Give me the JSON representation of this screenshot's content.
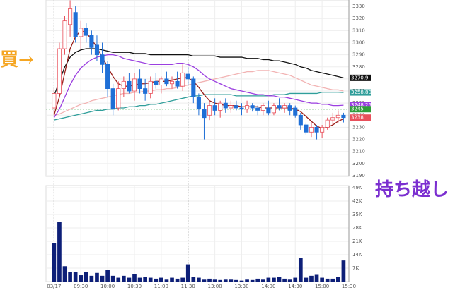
{
  "chart_data": {
    "type": "candlestick",
    "xlim": [
      -1.5,
      55
    ],
    "xticks": [
      {
        "value": 0,
        "label": "03/17"
      },
      {
        "value": 5,
        "label": "09:30"
      },
      {
        "value": 10,
        "label": "10:00"
      },
      {
        "value": 15,
        "label": "10:30"
      },
      {
        "value": 20,
        "label": "11:00"
      },
      {
        "value": 25,
        "label": "11:30"
      },
      {
        "value": 30,
        "label": "13:00"
      },
      {
        "value": 35,
        "label": "13:30"
      },
      {
        "value": 40,
        "label": "14:00"
      },
      {
        "value": 45,
        "label": "14:30"
      },
      {
        "value": 50,
        "label": "15:00"
      },
      {
        "value": 55,
        "label": "15:30"
      }
    ],
    "ylim": [
      3189.4,
      3335.3
    ],
    "yticks": [
      3190,
      3200,
      3210,
      3220,
      3230,
      3240,
      3250,
      3260,
      3270,
      3280,
      3290,
      3300,
      3310,
      3320,
      3330
    ],
    "grid": true,
    "up_color": "#e8505b",
    "down_color": "#1f6fd6",
    "open": [
      3246,
      3258,
      3295,
      3315,
      3325,
      3305,
      3312,
      3306,
      3298,
      3290,
      3282,
      3262,
      3246,
      3262,
      3268,
      3260,
      3270,
      3262,
      3258,
      3268,
      3265,
      3270,
      3266,
      3268,
      3264,
      3274,
      3270,
      3255,
      3245,
      3240,
      3248,
      3244,
      3250,
      3246,
      3248,
      3246,
      3245,
      3248,
      3246,
      3244,
      3246,
      3242,
      3248,
      3246,
      3248,
      3246,
      3240,
      3232,
      3226,
      3230,
      3226,
      3230,
      3236,
      3238,
      3240
    ],
    "high": [
      3262,
      3300,
      3322,
      3335,
      3330,
      3318,
      3316,
      3310,
      3306,
      3300,
      3285,
      3266,
      3268,
      3272,
      3275,
      3275,
      3278,
      3270,
      3272,
      3275,
      3272,
      3276,
      3272,
      3276,
      3282,
      3280,
      3272,
      3258,
      3250,
      3252,
      3254,
      3252,
      3254,
      3252,
      3252,
      3250,
      3252,
      3250,
      3248,
      3250,
      3252,
      3250,
      3254,
      3250,
      3250,
      3248,
      3242,
      3234,
      3234,
      3232,
      3232,
      3238,
      3242,
      3244,
      3242
    ],
    "low": [
      3240,
      3255,
      3290,
      3305,
      3300,
      3295,
      3300,
      3290,
      3285,
      3275,
      3255,
      3240,
      3244,
      3255,
      3258,
      3252,
      3258,
      3252,
      3254,
      3262,
      3258,
      3264,
      3262,
      3262,
      3260,
      3265,
      3250,
      3240,
      3220,
      3236,
      3240,
      3238,
      3242,
      3242,
      3244,
      3240,
      3242,
      3243,
      3240,
      3240,
      3240,
      3240,
      3244,
      3242,
      3240,
      3238,
      3228,
      3224,
      3222,
      3220,
      3221,
      3228,
      3232,
      3234,
      3234
    ],
    "close": [
      3258,
      3295,
      3318,
      3328,
      3305,
      3312,
      3306,
      3296,
      3290,
      3282,
      3262,
      3245,
      3262,
      3268,
      3260,
      3270,
      3262,
      3258,
      3268,
      3265,
      3270,
      3266,
      3268,
      3264,
      3275,
      3270,
      3255,
      3245,
      3238,
      3248,
      3244,
      3250,
      3246,
      3248,
      3246,
      3245,
      3248,
      3246,
      3244,
      3248,
      3242,
      3248,
      3246,
      3248,
      3244,
      3240,
      3232,
      3226,
      3230,
      3226,
      3230,
      3236,
      3238,
      3240,
      3238
    ],
    "lines": [
      {
        "color": "#111111",
        "end_label": "3270.9",
        "values": [
          3256,
          3268,
          3280,
          3288,
          3292,
          3294,
          3295,
          3295,
          3295,
          3294,
          3293,
          3292,
          3292,
          3292,
          3292,
          3291,
          3291,
          3291,
          3290,
          3290,
          3290,
          3290,
          3290,
          3290,
          3290,
          3290,
          3289,
          3289,
          3289,
          3289,
          3289,
          3288,
          3288,
          3288,
          3288,
          3288,
          3287,
          3287,
          3287,
          3286,
          3286,
          3285,
          3285,
          3284,
          3283,
          3282,
          3280,
          3279,
          3277,
          3276,
          3275,
          3274,
          3273,
          3272,
          3270.9
        ]
      },
      {
        "color": "#f2b3b3",
        "values": [
          3240,
          3241,
          3243,
          3245,
          3247,
          3249,
          3250,
          3252,
          3253,
          3254,
          3255,
          3256,
          3257,
          3258,
          3258,
          3259,
          3259,
          3260,
          3260,
          3261,
          3261,
          3262,
          3262,
          3263,
          3264,
          3265,
          3266,
          3267,
          3268,
          3269,
          3270,
          3271,
          3272,
          3273,
          3274,
          3275,
          3276,
          3276,
          3277,
          3277,
          3277,
          3276,
          3275,
          3274,
          3273,
          3271,
          3269,
          3267,
          3265,
          3264,
          3263,
          3262,
          3261,
          3261,
          3260
        ]
      },
      {
        "color": "#2f9e9a",
        "end_label": "3258.80",
        "values": [
          3236,
          3237,
          3238,
          3239,
          3240,
          3241,
          3242,
          3243,
          3244,
          3244,
          3245,
          3245,
          3246,
          3246,
          3247,
          3247,
          3248,
          3248,
          3249,
          3249,
          3250,
          3251,
          3252,
          3253,
          3254,
          3255,
          3256,
          3256,
          3257,
          3257,
          3257,
          3257,
          3257,
          3257,
          3256,
          3256,
          3256,
          3256,
          3256,
          3256,
          3256,
          3257,
          3257,
          3257,
          3258,
          3258,
          3258,
          3258,
          3258,
          3258,
          3259,
          3259,
          3259,
          3259,
          3258.8
        ]
      },
      {
        "color": "#9b3fe0",
        "end_label": "3248.25",
        "values": [
          3238,
          3245,
          3255,
          3265,
          3273,
          3279,
          3283,
          3286,
          3288,
          3289,
          3290,
          3290,
          3289,
          3287,
          3286,
          3285,
          3284,
          3283,
          3282,
          3282,
          3282,
          3282,
          3282,
          3283,
          3283,
          3282,
          3280,
          3277,
          3273,
          3270,
          3268,
          3266,
          3264,
          3262,
          3261,
          3260,
          3259,
          3258,
          3257,
          3257,
          3256,
          3256,
          3255,
          3255,
          3254,
          3253,
          3252,
          3251,
          3250,
          3250,
          3249,
          3249,
          3248,
          3248,
          3248.25
        ]
      },
      {
        "color": "#9a1f1a",
        "values": [
          3240,
          3255,
          3275,
          3295,
          3305,
          3310,
          3308,
          3303,
          3296,
          3288,
          3280,
          3272,
          3266,
          3264,
          3264,
          3265,
          3266,
          3266,
          3267,
          3268,
          3268,
          3268,
          3269,
          3270,
          3271,
          3271,
          3268,
          3263,
          3257,
          3252,
          3250,
          3249,
          3248,
          3248,
          3248,
          3247,
          3247,
          3247,
          3247,
          3246,
          3246,
          3246,
          3246,
          3246,
          3246,
          3245,
          3243,
          3239,
          3235,
          3231,
          3229,
          3230,
          3232,
          3235,
          3237
        ]
      }
    ],
    "ref_line": {
      "value": 3245,
      "color": "#2e9d3a"
    },
    "volume": {
      "color": "#0d1f78",
      "ylim": [
        0,
        50100
      ],
      "yticks": [
        {
          "value": 7000,
          "label": "7K"
        },
        {
          "value": 14000,
          "label": "14K"
        },
        {
          "value": 21000,
          "label": "21K"
        },
        {
          "value": 28000,
          "label": "28K"
        },
        {
          "value": 35000,
          "label": "35K"
        },
        {
          "value": 42000,
          "label": "42K"
        },
        {
          "value": 49000,
          "label": "49K"
        }
      ],
      "values": [
        20000,
        31000,
        8000,
        5000,
        5000,
        3300,
        5000,
        3000,
        4500,
        3000,
        6000,
        3000,
        2000,
        3000,
        2000,
        4000,
        2000,
        2500,
        2000,
        1500,
        2000,
        1000,
        2000,
        1500,
        2000,
        9000,
        2500,
        2000,
        1000,
        1500,
        1000,
        800,
        1000,
        1000,
        800,
        500,
        1000,
        800,
        1500,
        1000,
        2000,
        2000,
        2500,
        1500,
        1000,
        2000,
        12500,
        2000,
        3000,
        3500,
        2000,
        1500,
        1500,
        2500,
        11000
      ]
    },
    "annotations": [
      {
        "text": "買→",
        "color": "#f5a623"
      },
      {
        "text": "持ち越し",
        "color": "#7b2fd0"
      }
    ]
  }
}
